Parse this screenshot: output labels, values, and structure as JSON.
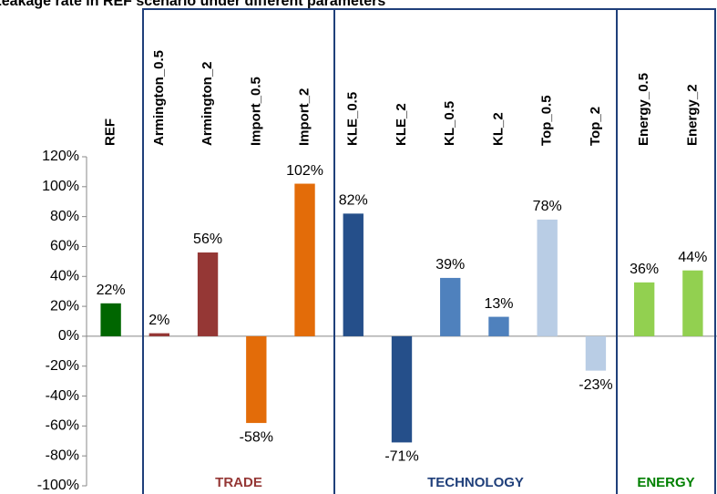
{
  "chart_data": {
    "type": "bar",
    "title": "Leakage rate in REF scenario under different parameters",
    "categories": [
      "REF",
      "Armington_0.5",
      "Armington_2",
      "Import_0.5",
      "Import_2",
      "KLE_0.5",
      "KLE_2",
      "KL_0.5",
      "KL_2",
      "Top_0.5",
      "Top_2",
      "Energy_0.5",
      "Energy_2"
    ],
    "values": [
      22,
      2,
      56,
      -58,
      102,
      82,
      -71,
      39,
      13,
      78,
      -23,
      36,
      44
    ],
    "value_labels": [
      "22%",
      "2%",
      "56%",
      "-58%",
      "102%",
      "82%",
      "-71%",
      "39%",
      "13%",
      "78%",
      "-23%",
      "36%",
      "44%"
    ],
    "colors": [
      "#006600",
      "#953735",
      "#953735",
      "#e36c09",
      "#e36c09",
      "#254f8a",
      "#254f8a",
      "#4f81bd",
      "#4f81bd",
      "#b9cde5",
      "#b9cde5",
      "#92d050",
      "#92d050"
    ],
    "ylim": [
      -100,
      120
    ],
    "yticks": [
      {
        "value": -100,
        "label": "-100%"
      },
      {
        "value": -80,
        "label": "-80%"
      },
      {
        "value": -60,
        "label": "-60%"
      },
      {
        "value": -40,
        "label": "-40%"
      },
      {
        "value": -20,
        "label": "-20%"
      },
      {
        "value": 0,
        "label": "0%"
      },
      {
        "value": 20,
        "label": "20%"
      },
      {
        "value": 40,
        "label": "40%"
      },
      {
        "value": 60,
        "label": "60%"
      },
      {
        "value": 80,
        "label": "80%"
      },
      {
        "value": 100,
        "label": "100%"
      },
      {
        "value": 120,
        "label": "120%"
      }
    ],
    "groups": [
      {
        "label": "TRADE",
        "color": "#953735"
      },
      {
        "label": "TECHNOLOGY",
        "color": "#1f3f7a"
      },
      {
        "label": "ENERGY",
        "color": "#008000"
      }
    ]
  }
}
